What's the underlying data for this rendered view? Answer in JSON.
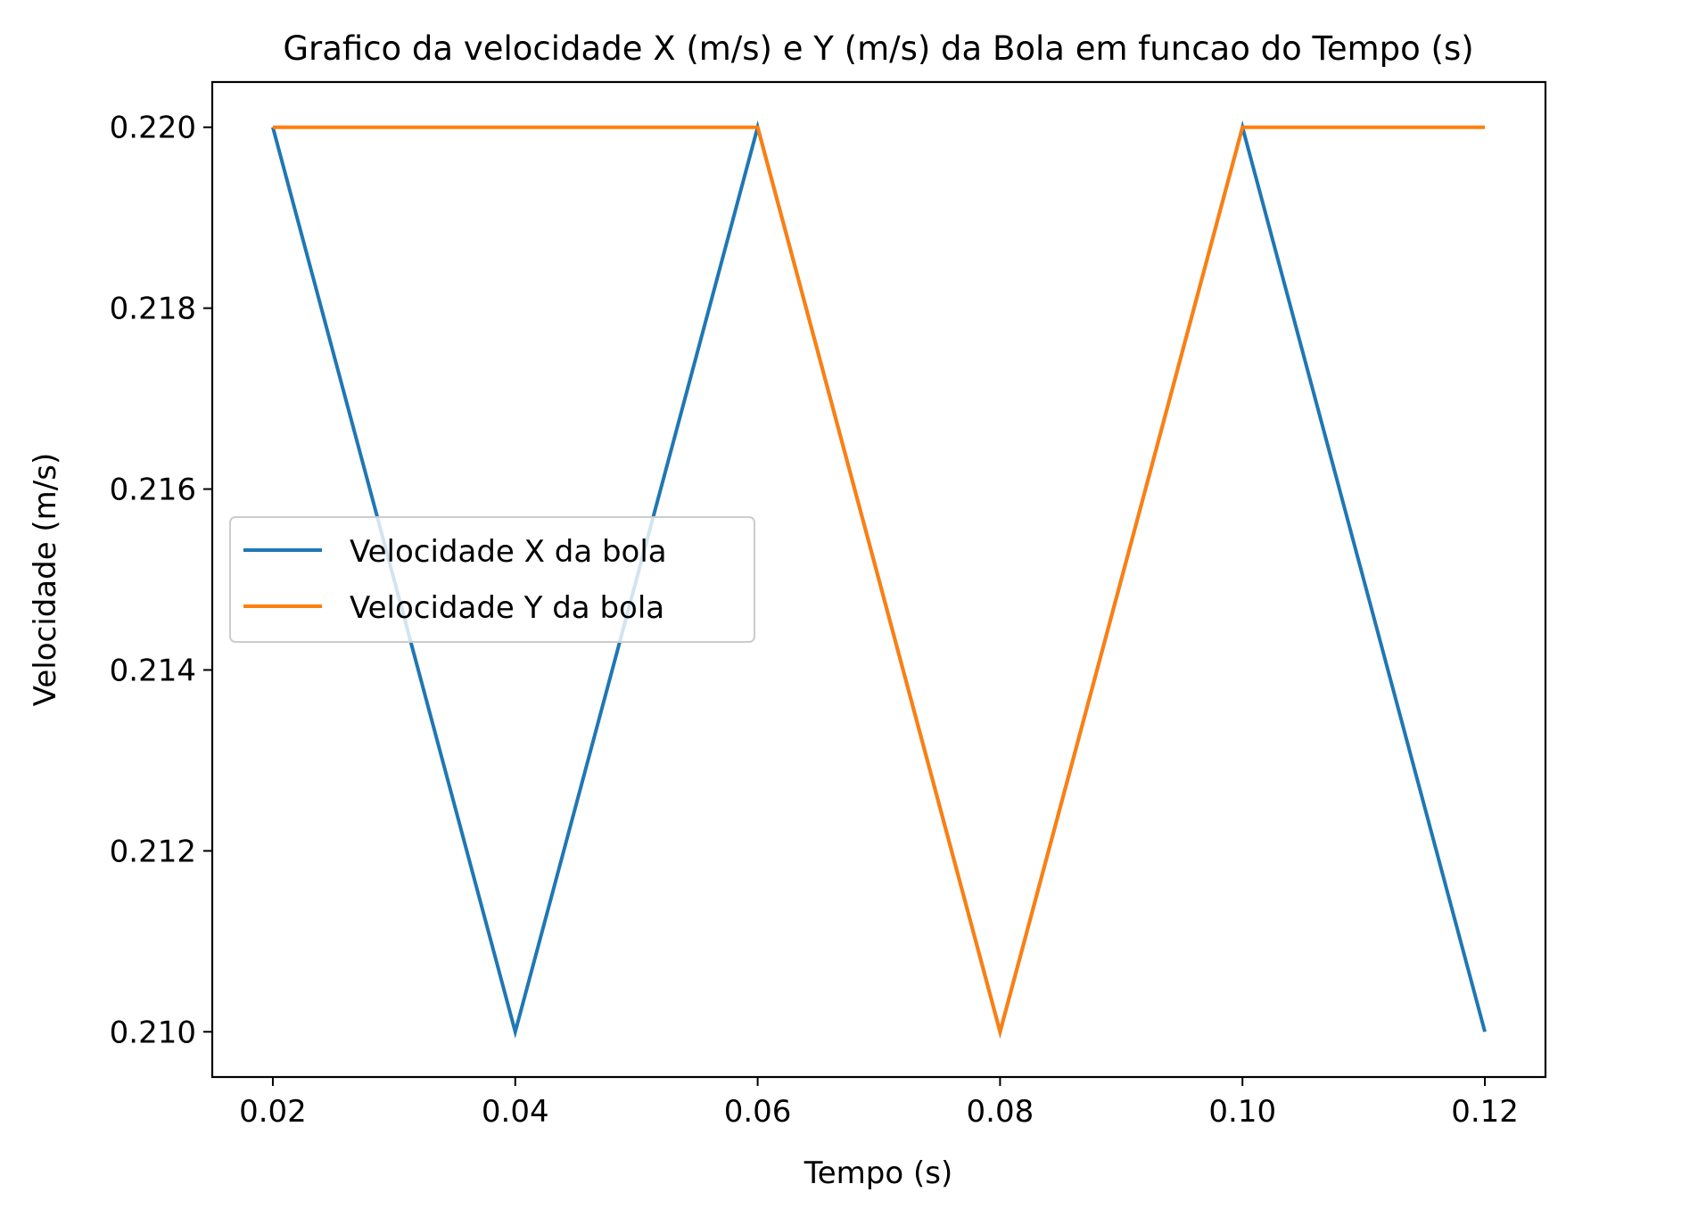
{
  "chart_data": {
    "type": "line",
    "title": "Grafico da velocidade X (m/s) e Y (m/s) da Bola em funcao do Tempo (s)",
    "xlabel": "Tempo (s)",
    "ylabel": "Velocidade (m/s)",
    "x": [
      0.02,
      0.04,
      0.06,
      0.08,
      0.1,
      0.12
    ],
    "xlim": [
      0.015,
      0.125
    ],
    "ylim": [
      0.2095,
      0.2205
    ],
    "xticks": [
      0.02,
      0.04,
      0.06,
      0.08,
      0.1,
      0.12
    ],
    "xtick_labels": [
      "0.02",
      "0.04",
      "0.06",
      "0.08",
      "0.10",
      "0.12"
    ],
    "yticks": [
      0.21,
      0.212,
      0.214,
      0.216,
      0.218,
      0.22
    ],
    "ytick_labels": [
      "0.210",
      "0.212",
      "0.214",
      "0.216",
      "0.218",
      "0.220"
    ],
    "grid": false,
    "legend_position": "center-left",
    "series": [
      {
        "name": "Velocidade X da bola",
        "color": "#1f77b4",
        "values": [
          0.22,
          0.21,
          0.22,
          0.21,
          0.22,
          0.21
        ]
      },
      {
        "name": "Velocidade Y da bola",
        "color": "#ff7f0e",
        "values": [
          0.22,
          0.22,
          0.22,
          0.21,
          0.22,
          0.22
        ]
      }
    ]
  }
}
